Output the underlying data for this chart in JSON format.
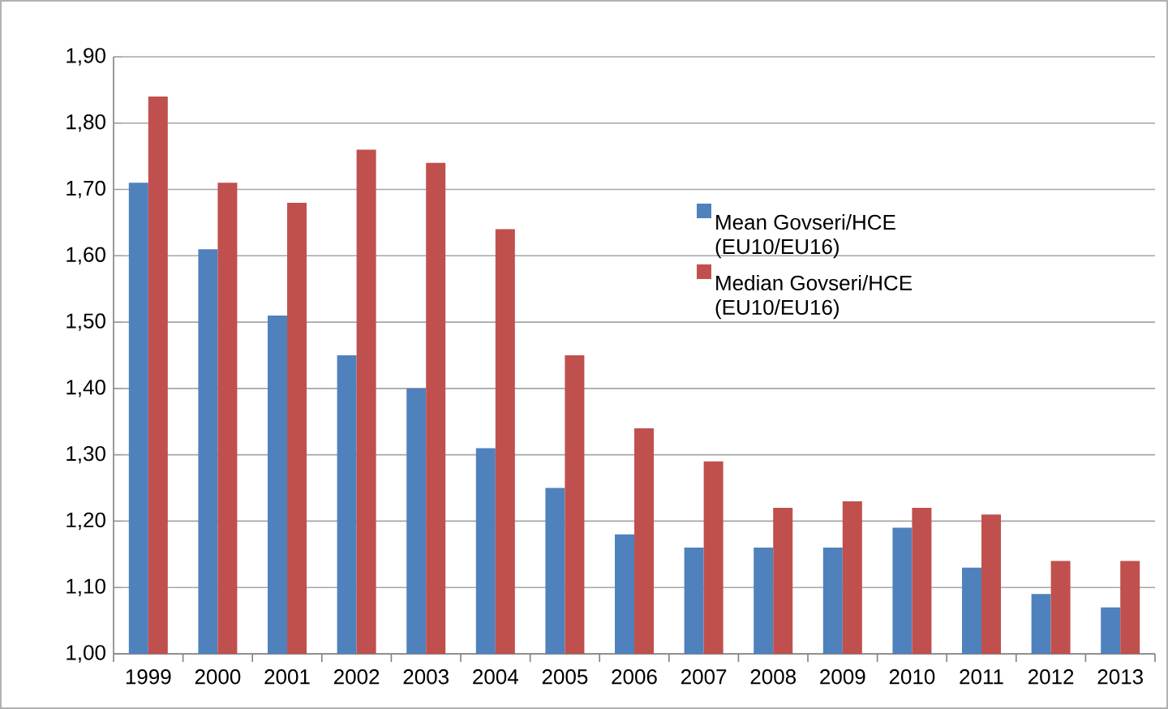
{
  "chart_data": {
    "type": "bar",
    "categories": [
      "1999",
      "2000",
      "2001",
      "2002",
      "2003",
      "2004",
      "2005",
      "2006",
      "2007",
      "2008",
      "2009",
      "2010",
      "2011",
      "2012",
      "2013"
    ],
    "series": [
      {
        "name": "Mean Govseri/HCE (EU10/EU16)",
        "color": "#4f81bd",
        "values": [
          1.71,
          1.61,
          1.51,
          1.45,
          1.4,
          1.31,
          1.25,
          1.18,
          1.16,
          1.16,
          1.16,
          1.19,
          1.13,
          1.09,
          1.07
        ]
      },
      {
        "name": "Median Govseri/HCE (EU10/EU16)",
        "color": "#c0504d",
        "values": [
          1.84,
          1.71,
          1.68,
          1.76,
          1.74,
          1.64,
          1.45,
          1.34,
          1.29,
          1.22,
          1.23,
          1.22,
          1.21,
          1.14,
          1.14
        ]
      }
    ],
    "ylim": [
      1.0,
      1.9
    ],
    "yticks": [
      {
        "value": 1.0,
        "label": "1,00"
      },
      {
        "value": 1.1,
        "label": "1,10"
      },
      {
        "value": 1.2,
        "label": "1,20"
      },
      {
        "value": 1.3,
        "label": "1,30"
      },
      {
        "value": 1.4,
        "label": "1,40"
      },
      {
        "value": 1.5,
        "label": "1,50"
      },
      {
        "value": 1.6,
        "label": "1,60"
      },
      {
        "value": 1.7,
        "label": "1,70"
      },
      {
        "value": 1.8,
        "label": "1,80"
      },
      {
        "value": 1.9,
        "label": "1,90"
      }
    ],
    "grid": "y",
    "legend": "right"
  }
}
